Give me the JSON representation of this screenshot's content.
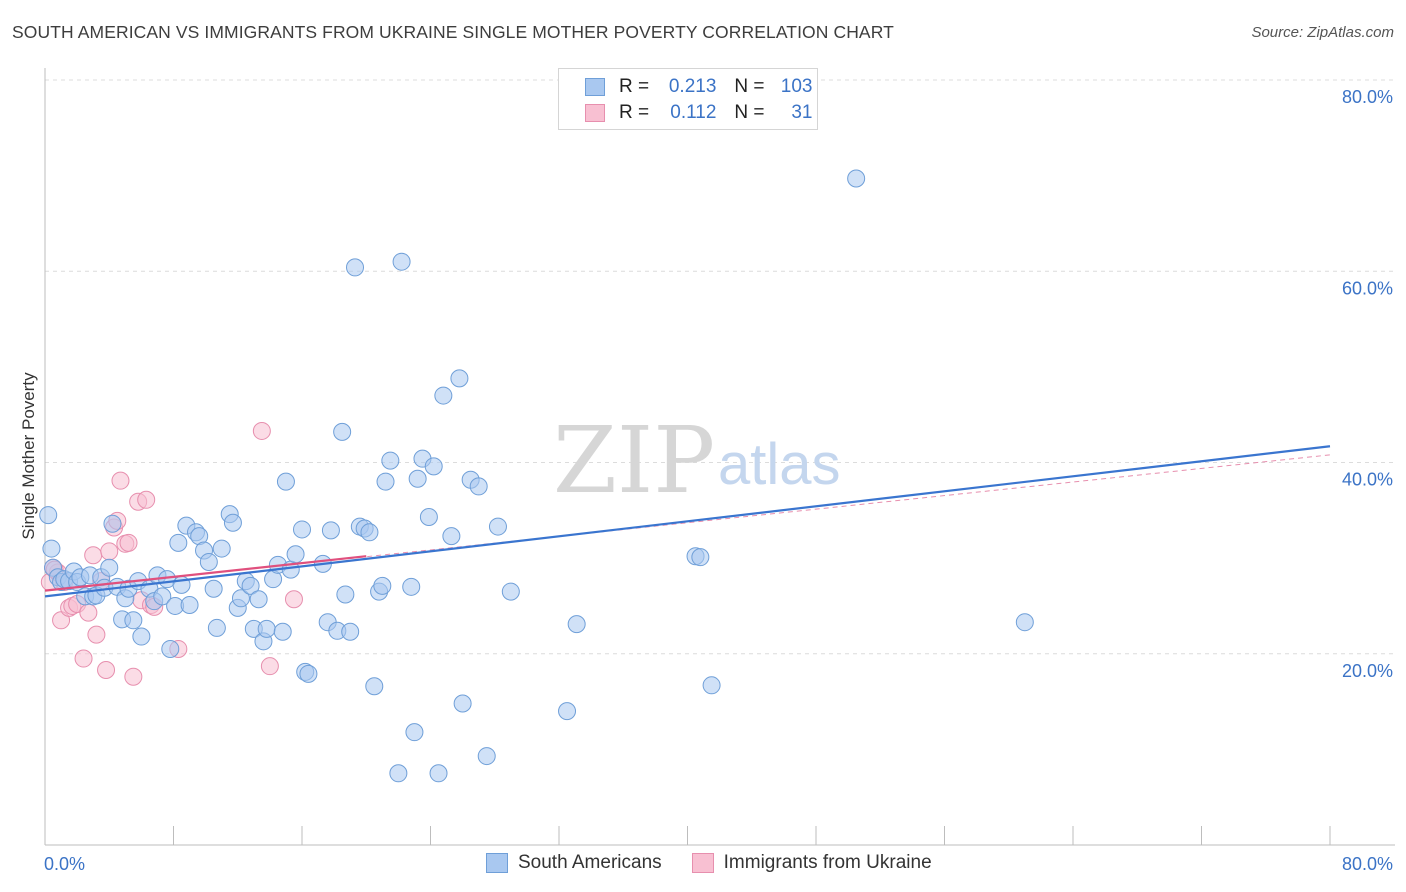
{
  "header": {
    "title": "SOUTH AMERICAN VS IMMIGRANTS FROM UKRAINE SINGLE MOTHER POVERTY CORRELATION CHART",
    "source": "Source: ZipAtlas.com"
  },
  "watermark": {
    "zip": "ZIP",
    "atlas": "atlas"
  },
  "legend": {
    "rows": [
      {
        "r_label": "R =",
        "r_value": "0.213",
        "n_label": "N =",
        "n_value": "103",
        "color": "#a9c8f0",
        "border": "#6f9fd8"
      },
      {
        "r_label": "R =",
        "r_value": "0.112",
        "n_label": "N =",
        "n_value": "31",
        "color": "#f8c0d2",
        "border": "#e78fae"
      }
    ]
  },
  "bottom_legend": {
    "items": [
      {
        "label": "South Americans",
        "color": "#a9c8f0",
        "border": "#6f9fd8"
      },
      {
        "label": "Immigrants from Ukraine",
        "color": "#f8c0d2",
        "border": "#e78fae"
      }
    ]
  },
  "chart_data": {
    "type": "scatter",
    "title": "SOUTH AMERICAN VS IMMIGRANTS FROM UKRAINE SINGLE MOTHER POVERTY CORRELATION CHART",
    "xlabel": "",
    "ylabel": "Single Mother Poverty",
    "xlim": [
      0,
      80
    ],
    "ylim": [
      0,
      80
    ],
    "x_tick_labels": [
      "0.0%",
      "80.0%"
    ],
    "y_tick_labels": [
      "20.0%",
      "40.0%",
      "60.0%",
      "80.0%"
    ],
    "y_ticks": [
      20,
      40,
      60,
      80
    ],
    "grid": true,
    "legend_position": "top-center",
    "series": [
      {
        "name": "South Americans",
        "color": "#a9c8f0",
        "stroke": "#6f9fd8",
        "trend": {
          "x": [
            0,
            80
          ],
          "y": [
            26.0,
            41.7
          ],
          "color": "#3a75cf"
        },
        "points": [
          [
            0.2,
            34.5
          ],
          [
            0.4,
            31
          ],
          [
            0.5,
            29
          ],
          [
            0.8,
            28
          ],
          [
            1.0,
            27.5
          ],
          [
            1.2,
            27.8
          ],
          [
            1.5,
            27.6
          ],
          [
            1.8,
            28.6
          ],
          [
            2.0,
            27.5
          ],
          [
            2.2,
            28
          ],
          [
            2.5,
            26
          ],
          [
            2.8,
            28.2
          ],
          [
            3.0,
            26
          ],
          [
            3.2,
            26.1
          ],
          [
            3.5,
            28
          ],
          [
            3.7,
            26.9
          ],
          [
            4.0,
            29
          ],
          [
            4.2,
            33.6
          ],
          [
            4.5,
            27
          ],
          [
            4.8,
            23.6
          ],
          [
            5.0,
            25.8
          ],
          [
            5.2,
            26.8
          ],
          [
            5.5,
            23.5
          ],
          [
            5.8,
            27.6
          ],
          [
            6.0,
            21.8
          ],
          [
            6.5,
            26.8
          ],
          [
            6.8,
            25.5
          ],
          [
            7.0,
            28.2
          ],
          [
            7.3,
            26
          ],
          [
            7.6,
            27.8
          ],
          [
            7.8,
            20.5
          ],
          [
            8.1,
            25
          ],
          [
            8.3,
            31.6
          ],
          [
            8.5,
            27.2
          ],
          [
            8.8,
            33.4
          ],
          [
            9.0,
            25.1
          ],
          [
            9.4,
            32.7
          ],
          [
            9.6,
            32.3
          ],
          [
            9.9,
            30.8
          ],
          [
            10.2,
            29.6
          ],
          [
            10.5,
            26.8
          ],
          [
            10.7,
            22.7
          ],
          [
            11.0,
            31
          ],
          [
            11.5,
            34.6
          ],
          [
            11.7,
            33.7
          ],
          [
            12.0,
            24.8
          ],
          [
            12.2,
            25.8
          ],
          [
            12.5,
            27.6
          ],
          [
            12.8,
            27.1
          ],
          [
            13.0,
            22.6
          ],
          [
            13.3,
            25.7
          ],
          [
            13.6,
            21.3
          ],
          [
            13.8,
            22.6
          ],
          [
            14.2,
            27.8
          ],
          [
            14.5,
            29.3
          ],
          [
            14.8,
            22.3
          ],
          [
            15.0,
            38
          ],
          [
            15.3,
            28.8
          ],
          [
            15.6,
            30.4
          ],
          [
            16.0,
            33
          ],
          [
            16.2,
            18.1
          ],
          [
            16.4,
            17.9
          ],
          [
            17.3,
            29.4
          ],
          [
            17.6,
            23.3
          ],
          [
            17.8,
            32.9
          ],
          [
            18.2,
            22.4
          ],
          [
            18.5,
            43.2
          ],
          [
            18.7,
            26.2
          ],
          [
            19.0,
            22.3
          ],
          [
            19.3,
            60.4
          ],
          [
            19.6,
            33.3
          ],
          [
            19.9,
            33.1
          ],
          [
            20.2,
            32.7
          ],
          [
            20.5,
            16.6
          ],
          [
            20.8,
            26.5
          ],
          [
            21.0,
            27.1
          ],
          [
            21.2,
            38
          ],
          [
            21.5,
            40.2
          ],
          [
            22.2,
            61
          ],
          [
            22.8,
            27
          ],
          [
            23.0,
            11.8
          ],
          [
            23.2,
            38.3
          ],
          [
            23.5,
            40.4
          ],
          [
            23.9,
            34.3
          ],
          [
            24.2,
            39.6
          ],
          [
            24.5,
            7.5
          ],
          [
            24.8,
            47
          ],
          [
            25.3,
            32.3
          ],
          [
            25.8,
            48.8
          ],
          [
            26.0,
            14.8
          ],
          [
            26.5,
            38.2
          ],
          [
            27.0,
            37.5
          ],
          [
            27.5,
            9.3
          ],
          [
            28.2,
            33.3
          ],
          [
            29.0,
            26.5
          ],
          [
            32.5,
            14
          ],
          [
            33.1,
            23.1
          ],
          [
            40.5,
            30.2
          ],
          [
            40.8,
            30.1
          ],
          [
            41.5,
            16.7
          ],
          [
            50.5,
            69.7
          ],
          [
            61.0,
            23.3
          ],
          [
            22.0,
            7.5
          ]
        ]
      },
      {
        "name": "Immigrants from Ukraine",
        "color": "#f8c0d2",
        "stroke": "#e78fae",
        "trend": {
          "x": [
            0,
            20
          ],
          "y": [
            26.6,
            30.2
          ],
          "color": "#e0507e"
        },
        "points": [
          [
            0.3,
            27.5
          ],
          [
            0.5,
            29
          ],
          [
            0.8,
            28.5
          ],
          [
            1.0,
            23.5
          ],
          [
            1.2,
            27.5
          ],
          [
            1.5,
            24.8
          ],
          [
            1.7,
            25
          ],
          [
            2.0,
            25.2
          ],
          [
            2.4,
            19.5
          ],
          [
            2.7,
            24.3
          ],
          [
            3.0,
            30.3
          ],
          [
            3.2,
            22
          ],
          [
            3.5,
            27.6
          ],
          [
            3.8,
            18.3
          ],
          [
            4.0,
            30.7
          ],
          [
            4.3,
            33.2
          ],
          [
            4.5,
            33.9
          ],
          [
            4.7,
            38.1
          ],
          [
            5.0,
            31.5
          ],
          [
            5.2,
            31.6
          ],
          [
            5.5,
            17.6
          ],
          [
            5.8,
            35.9
          ],
          [
            6.0,
            25.6
          ],
          [
            6.3,
            36.1
          ],
          [
            6.6,
            25.1
          ],
          [
            6.8,
            24.9
          ],
          [
            8.3,
            20.5
          ],
          [
            13.5,
            43.3
          ],
          [
            14.0,
            18.7
          ],
          [
            15.5,
            25.7
          ],
          [
            0.6,
            28.8
          ]
        ]
      }
    ]
  }
}
